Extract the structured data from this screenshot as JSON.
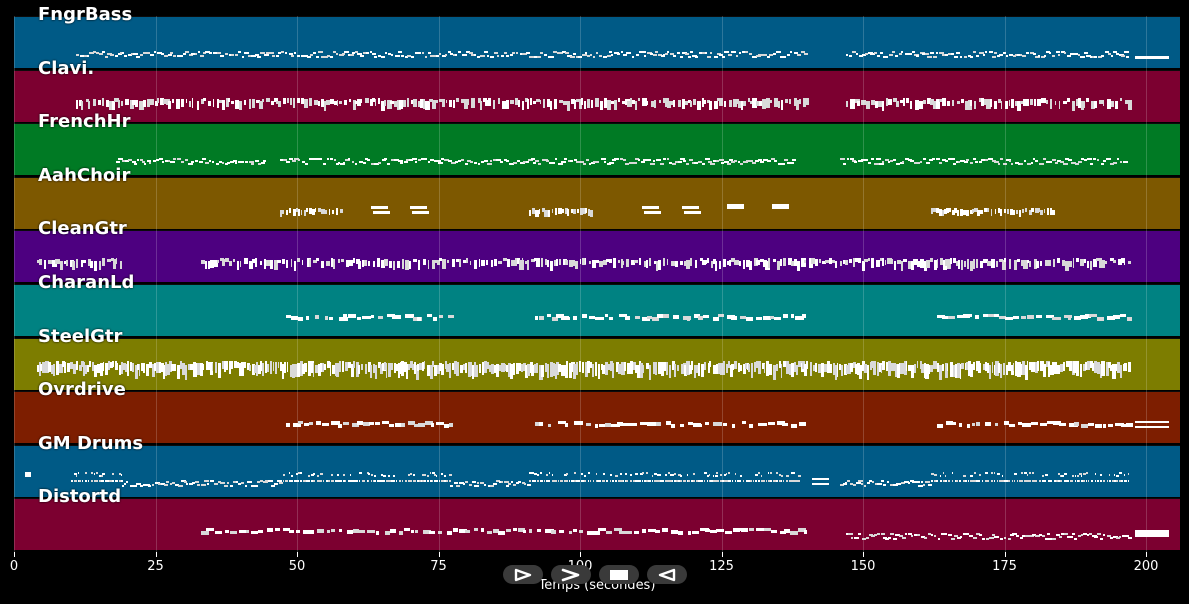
{
  "chart_data": {
    "type": "piano-roll",
    "xlabel": "Temps (secondes)",
    "xlim": [
      0,
      206
    ],
    "xticks": [
      0,
      25,
      50,
      75,
      100,
      125,
      150,
      175,
      200
    ],
    "tracks": [
      {
        "name": "FngrBass",
        "color": "#005a86",
        "segments": [
          {
            "start": 11,
            "end": 140,
            "style": "scatter-thin"
          },
          {
            "start": 147,
            "end": 197,
            "style": "scatter-thin"
          },
          {
            "start": 198,
            "end": 204,
            "style": "long-low"
          }
        ]
      },
      {
        "name": "Clavi.",
        "color": "#7c0030",
        "segments": [
          {
            "start": 11,
            "end": 140,
            "style": "dense-blocks"
          },
          {
            "start": 147,
            "end": 197,
            "style": "dense-blocks"
          }
        ]
      },
      {
        "name": "FrenchHr",
        "color": "#007a24",
        "segments": [
          {
            "start": 18,
            "end": 44,
            "style": "scatter-thin"
          },
          {
            "start": 47,
            "end": 92,
            "style": "scatter-thin"
          },
          {
            "start": 92,
            "end": 138,
            "style": "scatter-thin"
          },
          {
            "start": 146,
            "end": 196,
            "style": "scatter-thin"
          }
        ]
      },
      {
        "name": "AahChoir",
        "color": "#7d5800",
        "segments": [
          {
            "start": 47,
            "end": 58,
            "style": "cluster"
          },
          {
            "start": 63,
            "end": 66,
            "style": "pair"
          },
          {
            "start": 70,
            "end": 73,
            "style": "pair"
          },
          {
            "start": 91,
            "end": 102,
            "style": "cluster"
          },
          {
            "start": 111,
            "end": 114,
            "style": "pair"
          },
          {
            "start": 118,
            "end": 121,
            "style": "pair"
          },
          {
            "start": 126,
            "end": 129,
            "style": "single"
          },
          {
            "start": 134,
            "end": 137,
            "style": "single"
          },
          {
            "start": 162,
            "end": 184,
            "style": "cluster"
          }
        ]
      },
      {
        "name": "CleanGtr",
        "color": "#4d0080",
        "segments": [
          {
            "start": 4,
            "end": 19,
            "style": "dense-blocks"
          },
          {
            "start": 33,
            "end": 197,
            "style": "dense-blocks"
          }
        ]
      },
      {
        "name": "CharanLd",
        "color": "#008282",
        "segments": [
          {
            "start": 48,
            "end": 77,
            "style": "blocks"
          },
          {
            "start": 92,
            "end": 140,
            "style": "blocks"
          },
          {
            "start": 163,
            "end": 197,
            "style": "blocks"
          }
        ]
      },
      {
        "name": "SteelGtr",
        "color": "#7d7d00",
        "segments": [
          {
            "start": 4,
            "end": 197,
            "style": "dense-tall"
          }
        ]
      },
      {
        "name": "Ovrdrive",
        "color": "#7d1e00",
        "segments": [
          {
            "start": 48,
            "end": 77,
            "style": "blocks"
          },
          {
            "start": 92,
            "end": 140,
            "style": "blocks"
          },
          {
            "start": 163,
            "end": 197,
            "style": "blocks"
          },
          {
            "start": 198,
            "end": 204,
            "style": "double-long"
          }
        ]
      },
      {
        "name": "GM Drums",
        "color": "#005a86",
        "segments": [
          {
            "start": 2,
            "end": 3,
            "style": "single"
          },
          {
            "start": 10,
            "end": 19,
            "style": "drums"
          },
          {
            "start": 19,
            "end": 47,
            "style": "scatter-thin"
          },
          {
            "start": 47,
            "end": 77,
            "style": "drums"
          },
          {
            "start": 77,
            "end": 91,
            "style": "scatter-thin"
          },
          {
            "start": 91,
            "end": 139,
            "style": "drums"
          },
          {
            "start": 141,
            "end": 143,
            "style": "double-short"
          },
          {
            "start": 146,
            "end": 162,
            "style": "scatter-thin"
          },
          {
            "start": 162,
            "end": 197,
            "style": "drums"
          }
        ]
      },
      {
        "name": "Distortd",
        "color": "#7c0030",
        "segments": [
          {
            "start": 33,
            "end": 140,
            "style": "blocks"
          },
          {
            "start": 147,
            "end": 197,
            "style": "scatter-thin"
          },
          {
            "start": 198,
            "end": 204,
            "style": "long-high"
          }
        ]
      }
    ]
  },
  "controls": [
    {
      "name": "play",
      "icon": "play-outline-icon"
    },
    {
      "name": "fast-forward",
      "icon": "chevron-right-icon"
    },
    {
      "name": "stop",
      "icon": "stop-icon"
    },
    {
      "name": "rewind",
      "icon": "rewind-outline-icon"
    }
  ]
}
